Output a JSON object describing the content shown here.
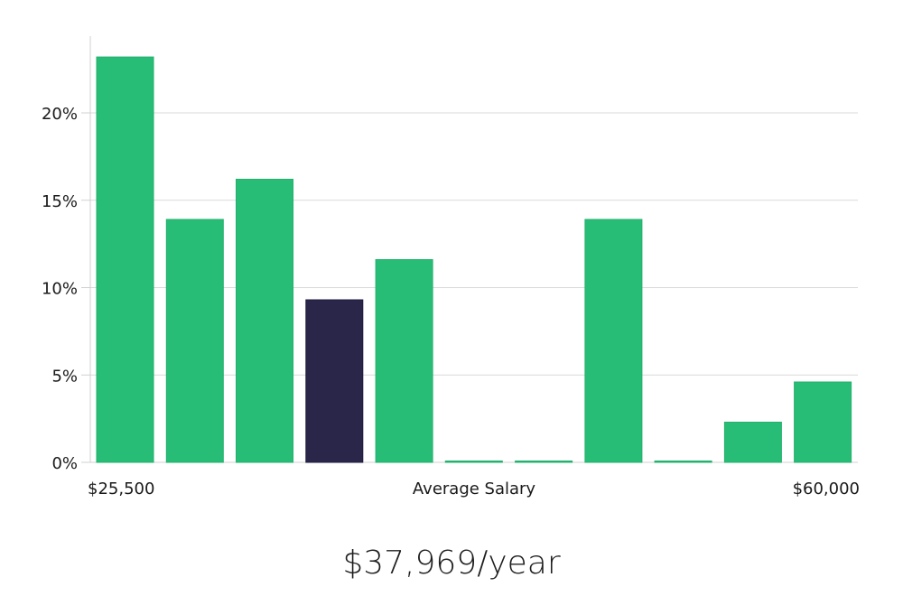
{
  "chart_data": {
    "type": "bar",
    "title": "",
    "xlabel": "Average Salary",
    "x_range_labels": [
      "$25,500",
      "$60,000"
    ],
    "ylabel": "",
    "ylim": [
      0,
      24
    ],
    "yticks": [
      0,
      5,
      10,
      15,
      20
    ],
    "ytick_labels": [
      "0%",
      "5%",
      "10%",
      "15%",
      "20%"
    ],
    "grid": true,
    "values": [
      23.2,
      13.9,
      16.2,
      9.3,
      11.6,
      0,
      0,
      13.9,
      0,
      2.3,
      4.6
    ],
    "highlight_index": 3,
    "colors": {
      "bar": "#28bd76",
      "highlight": "#29264a",
      "grid": "#d9d9d9",
      "axis": "#d0d0d0"
    }
  },
  "headline": {
    "salary": "$37,969/year"
  }
}
